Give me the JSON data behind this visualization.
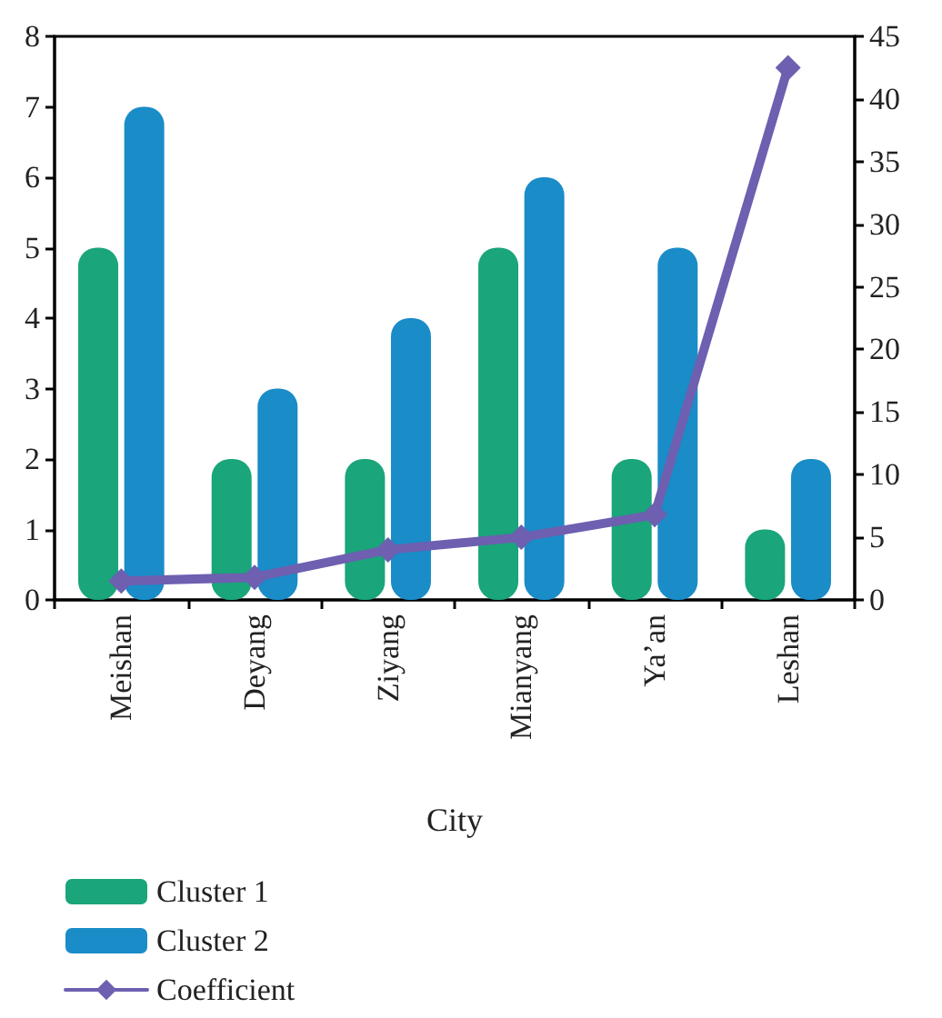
{
  "chart_data": {
    "type": "bar",
    "xlabel": "City",
    "categories": [
      "Meishan",
      "Deyang",
      "Ziyang",
      "Mianyang",
      "Ya’an",
      "Leshan"
    ],
    "series": [
      {
        "name": "Cluster 1",
        "color": "#1aa57a",
        "values": [
          5,
          2,
          2,
          5,
          2,
          1
        ]
      },
      {
        "name": "Cluster 2",
        "color": "#1a8cc8",
        "values": [
          7,
          3,
          4,
          6,
          5,
          2
        ]
      },
      {
        "name": "Coefficient",
        "type": "line",
        "axis": "y2",
        "color": "#6e5fb0",
        "values": [
          1.5,
          1.8,
          4,
          5,
          6.8,
          42.5
        ]
      }
    ],
    "ylim": [
      0,
      8
    ],
    "yticks": [
      0,
      1,
      2,
      3,
      4,
      5,
      6,
      7,
      8
    ],
    "y2lim": [
      0,
      45
    ],
    "y2ticks": [
      0,
      5,
      10,
      15,
      20,
      25,
      30,
      35,
      40,
      45
    ],
    "grid": false,
    "legend": "bottom",
    "marker": "diamond",
    "line_style": "solid"
  }
}
